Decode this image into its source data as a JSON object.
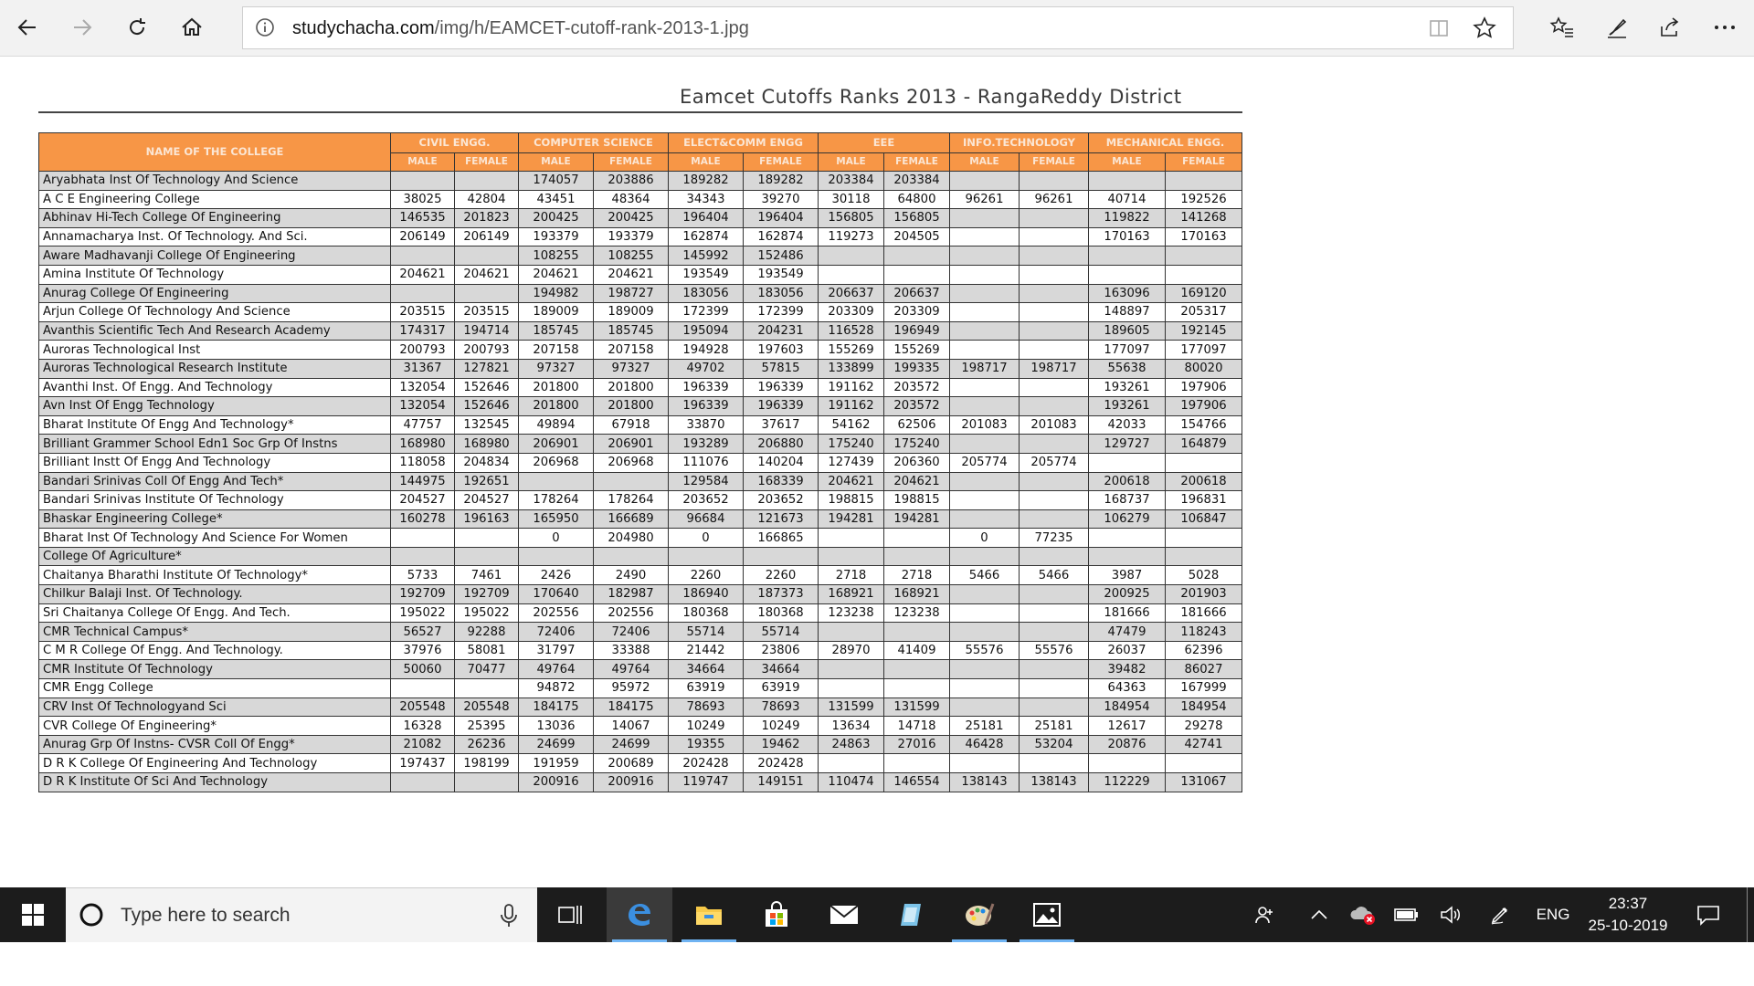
{
  "browser": {
    "url_host": "studychacha.com",
    "url_path": "/img/h/EAMCET-cutoff-rank-2013-1.jpg",
    "icons": [
      "back-icon",
      "forward-icon",
      "refresh-icon",
      "home-icon",
      "info-icon",
      "reading-view-icon",
      "favorite-star-icon",
      "favorites-list-icon",
      "pen-icon",
      "share-icon",
      "more-icon"
    ]
  },
  "document": {
    "title": "Eamcet Cutoffs Ranks 2013 - RangaReddy District",
    "header_college": "NAME OF THE COLLEGE",
    "branches": [
      "CIVIL ENGG.",
      "COMPUTER SCIENCE",
      "ELECT&COMM ENGG",
      "EEE",
      "INFO.TECHNOLOGY",
      "MECHANICAL ENGG."
    ],
    "sub_male": "MALE",
    "sub_female": "FEMALE",
    "rows": [
      {
        "name": "Aryabhata Inst Of Technology And Science",
        "v": [
          "",
          "",
          "174057",
          "203886",
          "189282",
          "189282",
          "203384",
          "203384",
          "",
          "",
          "",
          ""
        ]
      },
      {
        "name": "A C E Engineering College",
        "v": [
          "38025",
          "42804",
          "43451",
          "48364",
          "34343",
          "39270",
          "30118",
          "64800",
          "96261",
          "96261",
          "40714",
          "192526"
        ]
      },
      {
        "name": "Abhinav Hi-Tech College Of Engineering",
        "v": [
          "146535",
          "201823",
          "200425",
          "200425",
          "196404",
          "196404",
          "156805",
          "156805",
          "",
          "",
          "119822",
          "141268"
        ]
      },
      {
        "name": "Annamacharya Inst. Of Technology. And Sci.",
        "v": [
          "206149",
          "206149",
          "193379",
          "193379",
          "162874",
          "162874",
          "119273",
          "204505",
          "",
          "",
          "170163",
          "170163"
        ]
      },
      {
        "name": "Aware Madhavanji College Of Engineering",
        "v": [
          "",
          "",
          "108255",
          "108255",
          "145992",
          "152486",
          "",
          "",
          "",
          "",
          "",
          ""
        ]
      },
      {
        "name": "Amina Institute Of Technology",
        "v": [
          "204621",
          "204621",
          "204621",
          "204621",
          "193549",
          "193549",
          "",
          "",
          "",
          "",
          "",
          ""
        ]
      },
      {
        "name": "Anurag College Of Engineering",
        "v": [
          "",
          "",
          "194982",
          "198727",
          "183056",
          "183056",
          "206637",
          "206637",
          "",
          "",
          "163096",
          "169120"
        ]
      },
      {
        "name": "Arjun College Of Technology And Science",
        "v": [
          "203515",
          "203515",
          "189009",
          "189009",
          "172399",
          "172399",
          "203309",
          "203309",
          "",
          "",
          "148897",
          "205317"
        ]
      },
      {
        "name": "Avanthis Scientific Tech And Research Academy",
        "v": [
          "174317",
          "194714",
          "185745",
          "185745",
          "195094",
          "204231",
          "116528",
          "196949",
          "",
          "",
          "189605",
          "192145"
        ]
      },
      {
        "name": "Auroras Technological Inst",
        "v": [
          "200793",
          "200793",
          "207158",
          "207158",
          "194928",
          "197603",
          "155269",
          "155269",
          "",
          "",
          "177097",
          "177097"
        ]
      },
      {
        "name": "Auroras Technological Research Institute",
        "v": [
          "31367",
          "127821",
          "97327",
          "97327",
          "49702",
          "57815",
          "133899",
          "199335",
          "198717",
          "198717",
          "55638",
          "80020"
        ]
      },
      {
        "name": "Avanthi Inst. Of Engg. And Technology",
        "v": [
          "132054",
          "152646",
          "201800",
          "201800",
          "196339",
          "196339",
          "191162",
          "203572",
          "",
          "",
          "193261",
          "197906"
        ]
      },
      {
        "name": "Avn Inst Of Engg Technology",
        "v": [
          "132054",
          "152646",
          "201800",
          "201800",
          "196339",
          "196339",
          "191162",
          "203572",
          "",
          "",
          "193261",
          "197906"
        ]
      },
      {
        "name": "Bharat Institute Of Engg And Technology*",
        "v": [
          "47757",
          "132545",
          "49894",
          "67918",
          "33870",
          "37617",
          "54162",
          "62506",
          "201083",
          "201083",
          "42033",
          "154766"
        ]
      },
      {
        "name": "Brilliant Grammer School Edn1 Soc Grp Of Instns",
        "v": [
          "168980",
          "168980",
          "206901",
          "206901",
          "193289",
          "206880",
          "175240",
          "175240",
          "",
          "",
          "129727",
          "164879"
        ]
      },
      {
        "name": "Brilliant Instt Of Engg And Technology",
        "v": [
          "118058",
          "204834",
          "206968",
          "206968",
          "111076",
          "140204",
          "127439",
          "206360",
          "205774",
          "205774",
          "",
          ""
        ]
      },
      {
        "name": "Bandari Srinivas Coll Of Engg And Tech*",
        "v": [
          "144975",
          "192651",
          "",
          "",
          "129584",
          "168339",
          "204621",
          "204621",
          "",
          "",
          "200618",
          "200618"
        ]
      },
      {
        "name": "Bandari Srinivas Institute Of Technology",
        "v": [
          "204527",
          "204527",
          "178264",
          "178264",
          "203652",
          "203652",
          "198815",
          "198815",
          "",
          "",
          "168737",
          "196831"
        ]
      },
      {
        "name": "Bhaskar Engineering College*",
        "v": [
          "160278",
          "196163",
          "165950",
          "166689",
          "96684",
          "121673",
          "194281",
          "194281",
          "",
          "",
          "106279",
          "106847"
        ]
      },
      {
        "name": "Bharat Inst Of Technology And Science For Women",
        "v": [
          "",
          "",
          "0",
          "204980",
          "0",
          "166865",
          "",
          "",
          "0",
          "77235",
          "",
          ""
        ]
      },
      {
        "name": "College Of Agriculture*",
        "v": [
          "",
          "",
          "",
          "",
          "",
          "",
          "",
          "",
          "",
          "",
          "",
          ""
        ]
      },
      {
        "name": "Chaitanya Bharathi Institute Of Technology*",
        "v": [
          "5733",
          "7461",
          "2426",
          "2490",
          "2260",
          "2260",
          "2718",
          "2718",
          "5466",
          "5466",
          "3987",
          "5028"
        ]
      },
      {
        "name": "Chilkur Balaji Inst. Of Technology.",
        "v": [
          "192709",
          "192709",
          "170640",
          "182987",
          "186940",
          "187373",
          "168921",
          "168921",
          "",
          "",
          "200925",
          "201903"
        ]
      },
      {
        "name": "Sri Chaitanya College Of Engg. And Tech.",
        "v": [
          "195022",
          "195022",
          "202556",
          "202556",
          "180368",
          "180368",
          "123238",
          "123238",
          "",
          "",
          "181666",
          "181666"
        ]
      },
      {
        "name": "CMR Technical Campus*",
        "v": [
          "56527",
          "92288",
          "72406",
          "72406",
          "55714",
          "55714",
          "",
          "",
          "",
          "",
          "47479",
          "118243"
        ]
      },
      {
        "name": "C M R College Of Engg. And Technology.",
        "v": [
          "37976",
          "58081",
          "31797",
          "33388",
          "21442",
          "23806",
          "28970",
          "41409",
          "55576",
          "55576",
          "26037",
          "62396"
        ]
      },
      {
        "name": "CMR Institute Of Technology",
        "v": [
          "50060",
          "70477",
          "49764",
          "49764",
          "34664",
          "34664",
          "",
          "",
          "",
          "",
          "39482",
          "86027"
        ]
      },
      {
        "name": "CMR Engg College",
        "v": [
          "",
          "",
          "94872",
          "95972",
          "63919",
          "63919",
          "",
          "",
          "",
          "",
          "64363",
          "167999"
        ]
      },
      {
        "name": "CRV Inst Of Technologyand Sci",
        "v": [
          "205548",
          "205548",
          "184175",
          "184175",
          "78693",
          "78693",
          "131599",
          "131599",
          "",
          "",
          "184954",
          "184954"
        ]
      },
      {
        "name": "CVR College Of Engineering*",
        "v": [
          "16328",
          "25395",
          "13036",
          "14067",
          "10249",
          "10249",
          "13634",
          "14718",
          "25181",
          "25181",
          "12617",
          "29278"
        ]
      },
      {
        "name": "Anurag Grp Of Instns- CVSR Coll Of Engg*",
        "v": [
          "21082",
          "26236",
          "24699",
          "24699",
          "19355",
          "19462",
          "24863",
          "27016",
          "46428",
          "53204",
          "20876",
          "42741"
        ]
      },
      {
        "name": "D R K College Of Engineering And Technology",
        "v": [
          "197437",
          "198199",
          "191959",
          "200689",
          "202428",
          "202428",
          "",
          "",
          "",
          "",
          "",
          ""
        ]
      },
      {
        "name": "D R K Institute Of Sci And Technology",
        "v": [
          "",
          "",
          "200916",
          "200916",
          "119747",
          "149151",
          "110474",
          "146554",
          "138143",
          "138143",
          "112229",
          "131067"
        ]
      }
    ]
  },
  "taskbar": {
    "search_placeholder": "Type here to search",
    "language": "ENG",
    "time": "23:37",
    "date": "25-10-2019"
  }
}
